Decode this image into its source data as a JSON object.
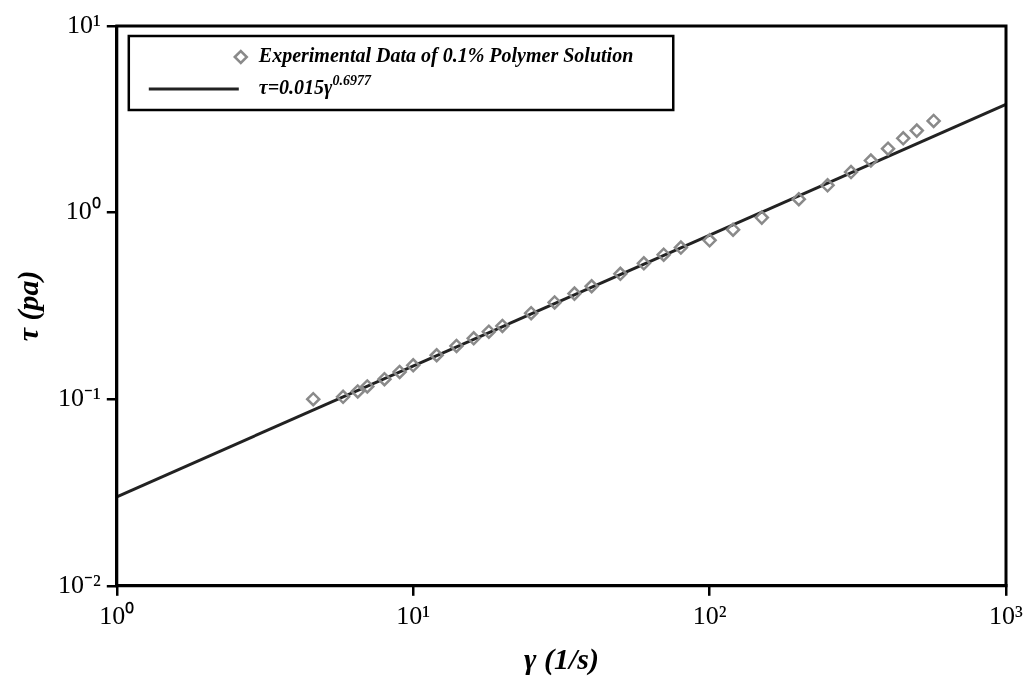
{
  "chart_data": {
    "type": "scatter",
    "xlabel": "γ (1/s)",
    "ylabel": "τ (pa)",
    "log": "xy",
    "legend": "top left",
    "grid": false,
    "xlim": [
      1,
      1000
    ],
    "xticks": [
      {
        "value": 1,
        "label": "10⁰"
      },
      {
        "value": 10,
        "label": "10¹"
      },
      {
        "value": 100,
        "label": "10²"
      },
      {
        "value": 1000,
        "label": "10³"
      }
    ],
    "ylim": [
      0.01,
      10
    ],
    "yticks": [
      {
        "value": 0.01,
        "label": "10⁻²"
      },
      {
        "value": 0.1,
        "label": "10⁻¹"
      },
      {
        "value": 1,
        "label": "10⁰"
      },
      {
        "value": 10,
        "label": "10¹"
      }
    ],
    "series": [
      {
        "name": "Experimental Data of 0.1% Polymer Solution",
        "marker": "diamond",
        "color": "#8a8a8a",
        "x": [
          4.6,
          5.8,
          6.5,
          7,
          8,
          9,
          10,
          12,
          14,
          16,
          18,
          20,
          25,
          30,
          35,
          40,
          50,
          60,
          70,
          80,
          100,
          120,
          150,
          200,
          250,
          300,
          350,
          400,
          450,
          500,
          570
        ],
        "values": [
          0.1,
          0.103,
          0.11,
          0.117,
          0.128,
          0.14,
          0.152,
          0.172,
          0.193,
          0.212,
          0.23,
          0.247,
          0.289,
          0.33,
          0.368,
          0.403,
          0.47,
          0.535,
          0.595,
          0.65,
          0.71,
          0.81,
          0.94,
          1.18,
          1.4,
          1.65,
          1.9,
          2.2,
          2.5,
          2.75,
          3.1
        ]
      },
      {
        "name": "τ=0.015γ$^{0.6977}$",
        "type": "line",
        "marker": "none",
        "color": "#222222",
        "x": [
          1,
          1000
        ],
        "values": [
          0.03,
          3.8
        ]
      }
    ]
  }
}
